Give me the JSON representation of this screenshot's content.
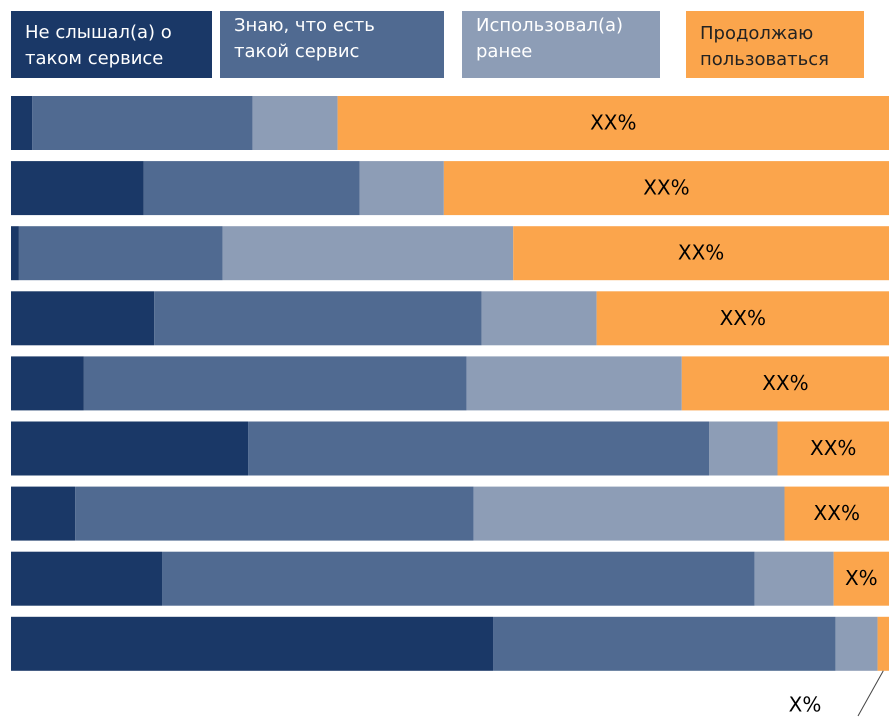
{
  "chart_data": {
    "type": "stacked-bar-horizontal",
    "xlim": [
      0,
      100
    ],
    "series": [
      {
        "name": "Не слышал(а) о таком сервисе",
        "color": "#1a3867",
        "values": [
          2.4,
          15.1,
          0.9,
          16.3,
          8.3,
          27.0,
          7.3,
          17.2,
          54.9
        ]
      },
      {
        "name": "Знаю, что есть такой сервис",
        "color": "#506a91",
        "values": [
          25.1,
          24.6,
          23.2,
          37.3,
          43.6,
          52.5,
          45.4,
          67.5,
          39.0
        ]
      },
      {
        "name": "Использовал(а) ранее",
        "color": "#8d9db6",
        "values": [
          9.7,
          9.6,
          33.1,
          13.1,
          24.5,
          7.8,
          35.4,
          9.0,
          4.8
        ]
      },
      {
        "name": "Продолжаю пользоваться",
        "color": "#fba54c",
        "values": [
          62.8,
          50.7,
          42.8,
          33.3,
          23.6,
          12.7,
          11.9,
          6.3,
          1.3
        ],
        "value_labels": [
          "XX%",
          "XX%",
          "XX%",
          "XX%",
          "XX%",
          "XX%",
          "XX%",
          "X%",
          "X%"
        ]
      }
    ]
  }
}
